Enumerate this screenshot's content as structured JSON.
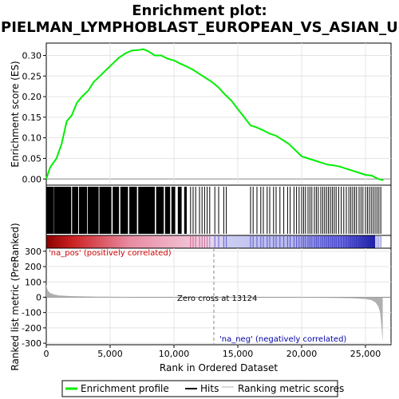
{
  "chart_data": {
    "type": "line",
    "title_line1": "Enrichment plot:",
    "title_line2": "SPIELMAN_LYMPHOBLAST_EUROPEAN_VS_ASIAN_UP",
    "xlabel": "Rank in Ordered Dataset",
    "es_ylabel": "Enrichment score (ES)",
    "metric_ylabel": "Ranked list metric (PreRanked)",
    "xlim": [
      0,
      27000
    ],
    "x_ticks": [
      0,
      5000,
      10000,
      15000,
      20000,
      25000
    ],
    "x_tick_labels": [
      "0",
      "5,000",
      "10,000",
      "15,000",
      "20,000",
      "25,000"
    ],
    "es_ylim": [
      -0.015,
      0.33
    ],
    "es_ticks": [
      0.0,
      0.05,
      0.1,
      0.15,
      0.2,
      0.25,
      0.3
    ],
    "es_tick_labels": [
      "0.00",
      "0.05",
      "0.10",
      "0.15",
      "0.20",
      "0.25",
      "0.30"
    ],
    "metric_ylim": [
      -310,
      320
    ],
    "metric_ticks": [
      -300,
      -200,
      -100,
      0,
      100,
      200,
      300
    ],
    "metric_tick_labels": [
      "-300",
      "-200",
      "-100",
      "0",
      "100",
      "200",
      "300"
    ],
    "enrichment_profile": {
      "name": "Enrichment profile",
      "color": "#00ee00",
      "x": [
        0,
        300,
        800,
        1200,
        1600,
        2000,
        2400,
        2800,
        3300,
        3700,
        4200,
        4700,
        5200,
        5700,
        6200,
        6700,
        7200,
        7600,
        8000,
        8500,
        9000,
        9500,
        10000,
        10500,
        11000,
        11500,
        12000,
        12500,
        13000,
        13500,
        14000,
        14500,
        15000,
        15500,
        16000,
        16500,
        17000,
        17500,
        18000,
        18500,
        19000,
        19500,
        20000,
        20500,
        21000,
        21500,
        22000,
        22500,
        23000,
        23500,
        24000,
        24500,
        25000,
        25500,
        26000,
        26400
      ],
      "y": [
        0.0,
        0.028,
        0.05,
        0.085,
        0.14,
        0.155,
        0.185,
        0.2,
        0.215,
        0.235,
        0.25,
        0.265,
        0.28,
        0.295,
        0.305,
        0.312,
        0.313,
        0.315,
        0.31,
        0.3,
        0.3,
        0.292,
        0.288,
        0.28,
        0.273,
        0.265,
        0.255,
        0.245,
        0.235,
        0.222,
        0.205,
        0.19,
        0.17,
        0.15,
        0.13,
        0.125,
        0.118,
        0.11,
        0.105,
        0.095,
        0.085,
        0.07,
        0.055,
        0.05,
        0.045,
        0.04,
        0.035,
        0.033,
        0.03,
        0.025,
        0.02,
        0.015,
        0.01,
        0.008,
        0.0,
        -0.003
      ]
    },
    "hits": {
      "name": "Hits",
      "color": "#000000",
      "ranges": [
        [
          0,
          600
        ],
        [
          620,
          1950
        ],
        [
          2020,
          2500
        ],
        [
          2560,
          3200
        ],
        [
          3250,
          4100
        ],
        [
          4160,
          5100
        ],
        [
          5200,
          5700
        ],
        [
          5800,
          6400
        ],
        [
          6500,
          7100
        ],
        [
          7200,
          8500
        ],
        [
          8600,
          9200
        ],
        [
          9300,
          9700
        ],
        [
          9800,
          10100
        ],
        [
          10300,
          10600
        ],
        [
          10800,
          11000
        ]
      ],
      "positions": [
        11300,
        11500,
        11700,
        12000,
        12200,
        12400,
        12600,
        12800,
        13200,
        13500,
        13900,
        14100,
        16000,
        16200,
        16500,
        16800,
        17000,
        17300,
        17500,
        17800,
        18000,
        18300,
        18600,
        18900,
        19100,
        19400,
        19600,
        19800,
        20000,
        20150,
        20300,
        20500,
        20650,
        20800,
        21000,
        21150,
        21300,
        21500,
        21650,
        21800,
        21950,
        22100,
        22250,
        22400,
        22550,
        22700,
        22900,
        23100,
        23300,
        23500,
        23700,
        23850,
        24000,
        24150,
        24300,
        24500,
        24650,
        24800,
        25000,
        25150,
        25300,
        25450,
        25600,
        25750,
        25900,
        26050,
        26200
      ]
    },
    "ranked_metric": {
      "name": "Ranking metric scores",
      "color": "#b0b0b0",
      "x": [
        0,
        50,
        150,
        300,
        600,
        1000,
        2000,
        4000,
        7000,
        10000,
        13124,
        16000,
        19000,
        22000,
        24000,
        25000,
        25500,
        25800,
        26000,
        26150,
        26250,
        26350
      ],
      "y": [
        90,
        60,
        40,
        28,
        18,
        12,
        7,
        4,
        2,
        1,
        0,
        -1,
        -2,
        -4,
        -7,
        -12,
        -20,
        -35,
        -60,
        -100,
        -190,
        -290
      ]
    },
    "zero_cross_text": "Zero cross at 13124",
    "zero_cross_x": 13124,
    "pos_label": "'na_pos' (positively correlated)",
    "neg_label": "'na_neg' (negatively correlated)",
    "pos_color": "#cc0000",
    "neg_color": "#0000aa",
    "legend": [
      {
        "name": "Enrichment profile",
        "color": "#00ee00"
      },
      {
        "name": "Hits",
        "color": "#000000"
      },
      {
        "name": "Ranking metric scores",
        "color": "#b0b0b0"
      }
    ]
  }
}
